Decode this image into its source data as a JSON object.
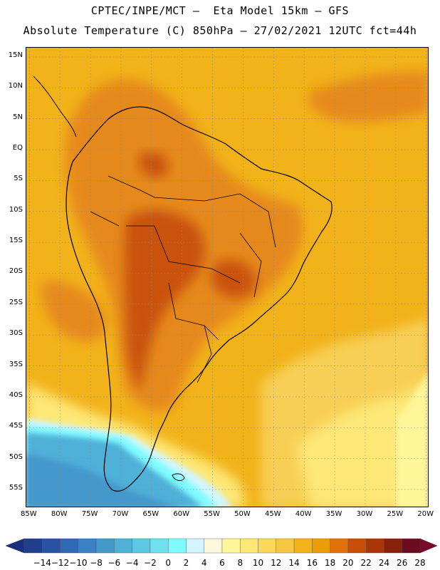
{
  "header": {
    "line1": "CPTEC/INPE/MCT –  Eta Model 15km – GFS",
    "line2": "Absolute Temperature (C) 850hPa – 27/02/2021 12UTC fct=44h"
  },
  "map": {
    "lat_labels": [
      "15N",
      "10N",
      "5N",
      "EQ",
      "5S",
      "10S",
      "15S",
      "20S",
      "25S",
      "30S",
      "35S",
      "40S",
      "45S",
      "50S",
      "55S"
    ],
    "lon_labels": [
      "85W",
      "80W",
      "75W",
      "70W",
      "65W",
      "60W",
      "55W",
      "50W",
      "45W",
      "40W",
      "35W",
      "30W",
      "25W",
      "20W"
    ],
    "lat_values": [
      15,
      10,
      5,
      0,
      -5,
      -10,
      -15,
      -20,
      -25,
      -30,
      -35,
      -40,
      -45,
      -50,
      -55
    ],
    "lon_values": [
      -85,
      -80,
      -75,
      -70,
      -65,
      -60,
      -55,
      -50,
      -45,
      -40,
      -35,
      -30,
      -25,
      -20
    ],
    "lat_range": [
      -58,
      16.5
    ],
    "lon_range": [
      -85.5,
      -19.5
    ]
  },
  "colorbar": {
    "labels": [
      "-14",
      "-12",
      "-10",
      "-8",
      "-6",
      "-4",
      "-2",
      "0",
      "2",
      "4",
      "6",
      "8",
      "10",
      "12",
      "14",
      "16",
      "18",
      "20",
      "22",
      "24",
      "26",
      "28"
    ],
    "colors": [
      "#1f3e8c",
      "#2753a2",
      "#2f68b4",
      "#3a80c2",
      "#4598cc",
      "#4fb0d8",
      "#5cc8e4",
      "#6ee0ee",
      "#7ffbff",
      "#d2f6ff",
      "#fff7dc",
      "#fff69a",
      "#fde777",
      "#fbd75c",
      "#f7c741",
      "#f2b21a",
      "#eb9d07",
      "#e2710a",
      "#c84e09",
      "#a83608",
      "#86210b",
      "#6b0d1e"
    ],
    "under_color": "#1b2f80",
    "over_color": "#7a0a2a"
  },
  "regions": {
    "land_interior": "#e6891b",
    "land_hot_core": "#c9530d",
    "ocean_warm": "#f2b21a",
    "ocean_mid": "#f8cf55",
    "ocean_cool": "#fde777",
    "south_cold": "#4fb0d8",
    "south_coldest": "#3a80c2"
  }
}
